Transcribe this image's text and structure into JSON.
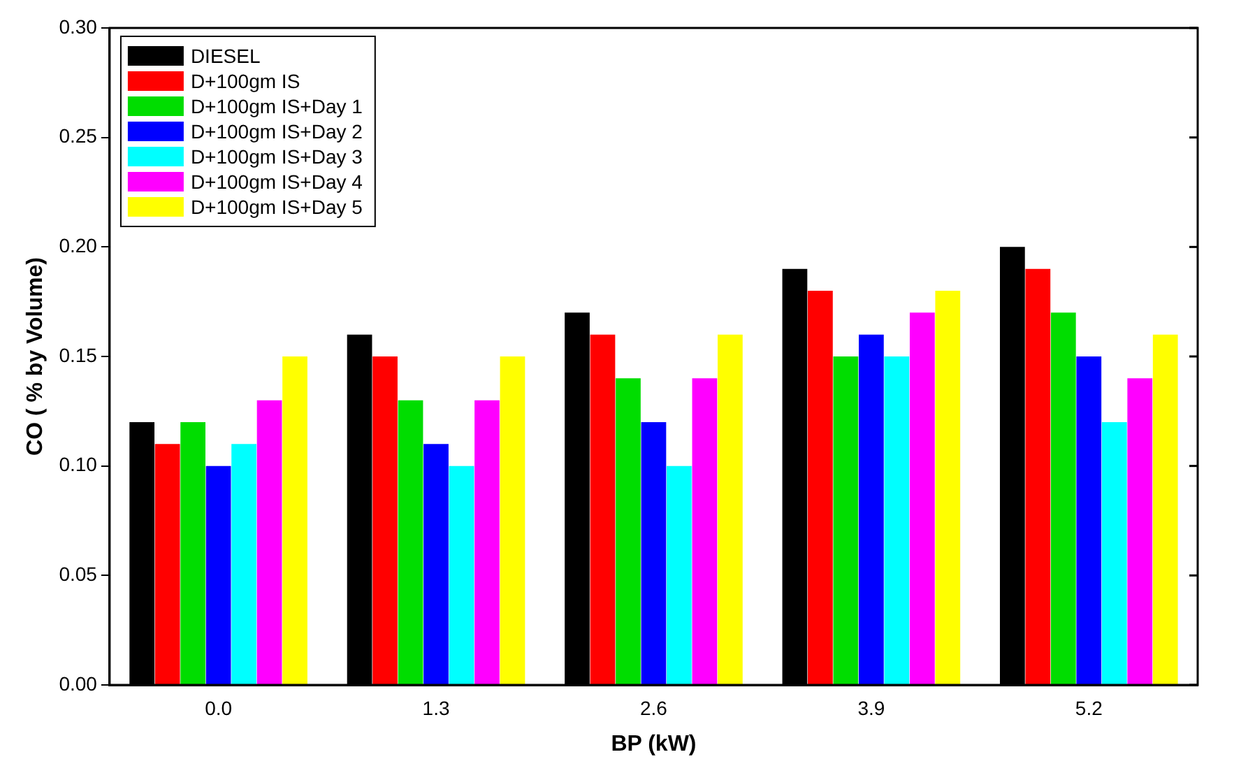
{
  "chart_data": {
    "type": "bar",
    "xlabel": "BP (kW)",
    "ylabel": "CO ( % by Volume)",
    "categories": [
      "0.0",
      "1.3",
      "2.6",
      "3.9",
      "5.2"
    ],
    "series": [
      {
        "name": "DIESEL",
        "color": "#000000",
        "values": [
          0.12,
          0.16,
          0.17,
          0.19,
          0.2
        ]
      },
      {
        "name": "D+100gm IS",
        "color": "#ff0000",
        "values": [
          0.11,
          0.15,
          0.16,
          0.18,
          0.19
        ]
      },
      {
        "name": "D+100gm IS+Day 1",
        "color": "#00dd00",
        "values": [
          0.12,
          0.13,
          0.14,
          0.15,
          0.17
        ]
      },
      {
        "name": "D+100gm IS+Day 2",
        "color": "#0000ff",
        "values": [
          0.1,
          0.11,
          0.12,
          0.16,
          0.15
        ]
      },
      {
        "name": "D+100gm IS+Day 3",
        "color": "#00ffff",
        "values": [
          0.11,
          0.1,
          0.1,
          0.15,
          0.12
        ]
      },
      {
        "name": "D+100gm IS+Day 4",
        "color": "#ff00ff",
        "values": [
          0.13,
          0.13,
          0.14,
          0.17,
          0.14
        ]
      },
      {
        "name": "D+100gm IS+Day 5",
        "color": "#ffff00",
        "values": [
          0.15,
          0.15,
          0.16,
          0.18,
          0.16
        ]
      }
    ],
    "ylim": [
      0,
      0.3
    ],
    "yticks": [
      {
        "value": 0,
        "label": "0.00"
      },
      {
        "value": 0.05,
        "label": "0.05"
      },
      {
        "value": 0.1,
        "label": "0.10"
      },
      {
        "value": 0.15,
        "label": "0.15"
      },
      {
        "value": 0.2,
        "label": "0.20"
      },
      {
        "value": 0.25,
        "label": "0.25"
      },
      {
        "value": 0.3,
        "label": "0.30"
      }
    ],
    "grid": false,
    "legend": "top left"
  }
}
